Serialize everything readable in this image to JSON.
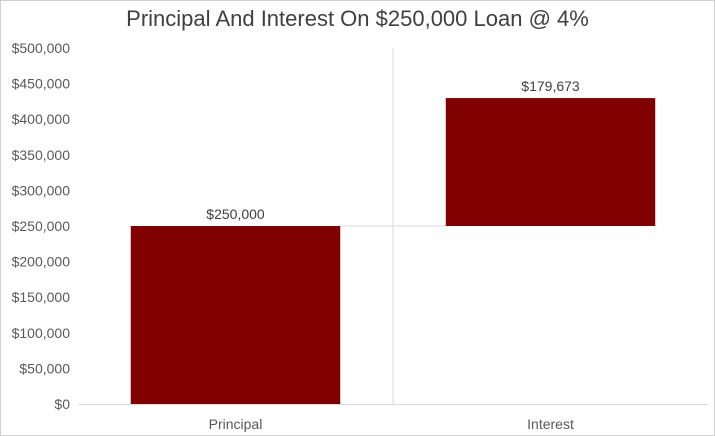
{
  "chart_data": {
    "type": "bar",
    "subtype": "waterfall",
    "title": "Principal And Interest On $250,000 Loan @ 4%",
    "categories": [
      "Principal",
      "Interest"
    ],
    "values": [
      250000,
      179673
    ],
    "bases": [
      0,
      250000
    ],
    "data_labels": [
      "$250,000",
      "$179,673"
    ],
    "ylim": [
      0,
      500000
    ],
    "yticks": [
      0,
      50000,
      100000,
      150000,
      200000,
      250000,
      300000,
      350000,
      400000,
      450000,
      500000
    ],
    "ytick_labels": [
      "$0",
      "$50,000",
      "$100,000",
      "$150,000",
      "$200,000",
      "$250,000",
      "$300,000",
      "$350,000",
      "$400,000",
      "$450,000",
      "$500,000"
    ],
    "bar_color": "#800000",
    "connector_color": "#d9d9d9",
    "grid": false,
    "legend": "none"
  }
}
